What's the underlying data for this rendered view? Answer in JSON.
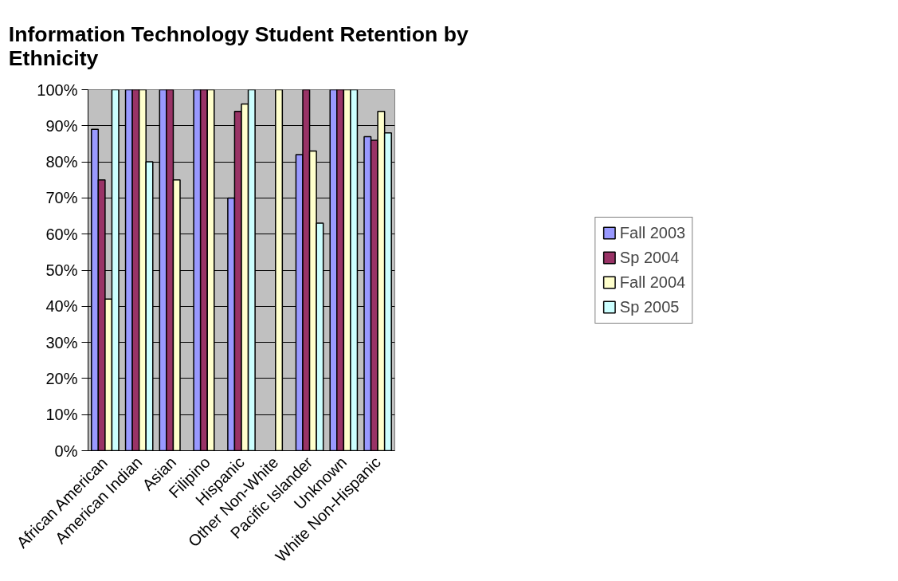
{
  "chart_data": {
    "type": "bar",
    "title": "Information Technology  Student Retention by Ethnicity",
    "categories": [
      "African American",
      "American Indian",
      "Asian",
      "Filipino",
      "Hispanic",
      "Other Non-White",
      "Pacific Islander",
      "Unknown",
      "White Non-Hispanic"
    ],
    "series": [
      {
        "name": "Fall 2003",
        "color": "#9999ff",
        "values": [
          89,
          100,
          100,
          100,
          70,
          null,
          82,
          100,
          87
        ]
      },
      {
        "name": "Sp 2004",
        "color": "#993366",
        "values": [
          75,
          100,
          100,
          100,
          94,
          null,
          100,
          100,
          86
        ]
      },
      {
        "name": "Fall 2004",
        "color": "#ffffcc",
        "values": [
          42,
          100,
          75,
          100,
          96,
          100,
          83,
          100,
          94
        ]
      },
      {
        "name": "Sp 2005",
        "color": "#ccffff",
        "values": [
          100,
          80,
          null,
          null,
          100,
          null,
          63,
          100,
          88
        ]
      }
    ],
    "ylim": [
      0,
      100
    ],
    "yticks": [
      {
        "value": 0,
        "label": "0%"
      },
      {
        "value": 10,
        "label": "10%"
      },
      {
        "value": 20,
        "label": "20%"
      },
      {
        "value": 30,
        "label": "30%"
      },
      {
        "value": 40,
        "label": "40%"
      },
      {
        "value": 50,
        "label": "50%"
      },
      {
        "value": 60,
        "label": "60%"
      },
      {
        "value": 70,
        "label": "70%"
      },
      {
        "value": 80,
        "label": "80%"
      },
      {
        "value": 90,
        "label": "90%"
      },
      {
        "value": 100,
        "label": "100%"
      }
    ],
    "grid": "y",
    "legend": "right"
  }
}
